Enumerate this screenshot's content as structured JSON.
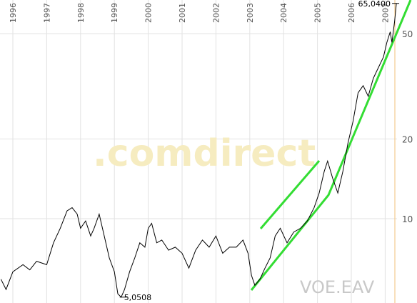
{
  "chart_data": {
    "type": "line",
    "log_scale": true,
    "grid": true,
    "color": "#000000",
    "x": [
      1995.65,
      1995.8,
      1996.0,
      1996.3,
      1996.5,
      1996.7,
      1997.0,
      1997.2,
      1997.4,
      1997.6,
      1997.75,
      1997.9,
      1998.0,
      1998.15,
      1998.3,
      1998.4,
      1998.55,
      1998.7,
      1998.85,
      1999.0,
      1999.1,
      1999.2,
      1999.3,
      1999.45,
      1999.6,
      1999.75,
      1999.9,
      2000.0,
      2000.1,
      2000.25,
      2000.4,
      2000.6,
      2000.8,
      2001.0,
      2001.2,
      2001.4,
      2001.6,
      2001.8,
      2002.0,
      2002.2,
      2002.4,
      2002.6,
      2002.8,
      2002.95,
      2003.05,
      2003.15,
      2003.3,
      2003.45,
      2003.6,
      2003.75,
      2003.9,
      2004.1,
      2004.3,
      2004.5,
      2004.7,
      2004.9,
      2005.05,
      2005.2,
      2005.3,
      2005.45,
      2005.6,
      2005.75,
      2005.9,
      2006.05,
      2006.2,
      2006.35,
      2006.5,
      2006.65,
      2006.8,
      2006.95,
      2007.05,
      2007.15,
      2007.2,
      2007.28,
      2007.33
    ],
    "values": [
      5.9,
      5.4,
      6.3,
      6.7,
      6.4,
      6.9,
      6.7,
      8.1,
      9.2,
      10.7,
      11.0,
      10.4,
      9.2,
      9.8,
      8.6,
      9.2,
      10.4,
      8.6,
      7.1,
      6.3,
      5.2,
      5.0508,
      5.4,
      6.3,
      7.1,
      8.1,
      7.8,
      9.2,
      9.6,
      8.1,
      8.3,
      7.6,
      7.8,
      7.4,
      6.5,
      7.6,
      8.3,
      7.8,
      8.6,
      7.4,
      7.8,
      7.8,
      8.3,
      7.4,
      6.1,
      5.6,
      5.9,
      6.5,
      7.1,
      8.6,
      9.2,
      8.1,
      8.9,
      9.2,
      9.8,
      11.0,
      12.5,
      15.1,
      16.5,
      14.2,
      12.5,
      15.1,
      19.3,
      23.3,
      29.9,
      31.8,
      29.0,
      33.9,
      37.2,
      40.8,
      46.3,
      50.8,
      46.3,
      55.8,
      65.04
    ],
    "xlim": [
      1995.62,
      2007.35
    ],
    "xticks": [
      1996,
      1997,
      1998,
      1999,
      2000,
      2001,
      2002,
      2003,
      2004,
      2005,
      2006,
      2007
    ],
    "ylim": [
      4.8,
      67
    ],
    "yticks": [
      10,
      20,
      50
    ],
    "max_label": "65,0400",
    "min_label": "5,0508",
    "watermark": ".comdirect",
    "symbol": "VOE.EAV"
  }
}
